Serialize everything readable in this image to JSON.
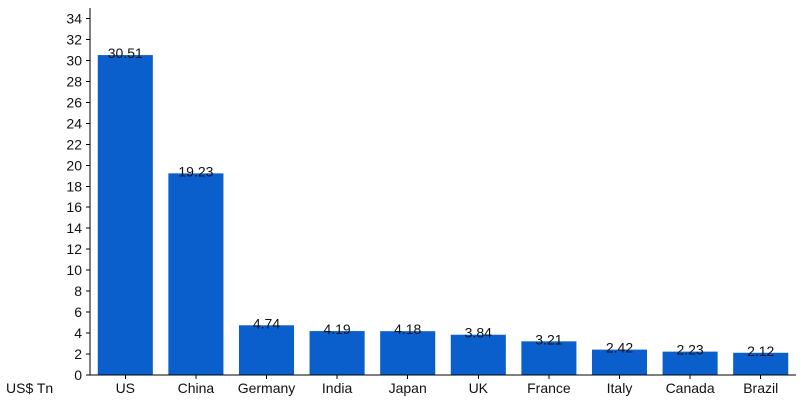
{
  "chart_data": {
    "type": "bar",
    "categories": [
      "US",
      "China",
      "Germany",
      "India",
      "Japan",
      "UK",
      "France",
      "Italy",
      "Canada",
      "Brazil"
    ],
    "values": [
      30.51,
      19.23,
      4.74,
      4.19,
      4.18,
      3.84,
      3.21,
      2.42,
      2.23,
      2.12
    ],
    "data_labels": [
      "30.51",
      "19.23",
      "4.74",
      "4.19",
      "4.18",
      "3.84",
      "3.21",
      "2.42",
      "2.23",
      "2.12"
    ],
    "yticks": [
      0,
      2,
      4,
      6,
      8,
      10,
      12,
      14,
      16,
      18,
      20,
      22,
      24,
      26,
      28,
      30,
      32,
      34
    ],
    "ylim": [
      0,
      35
    ],
    "ylabel": "US$ Tn",
    "xlabel": "",
    "title": "",
    "grid": false,
    "legend": "none",
    "bar_color": "#0a5fcc"
  }
}
